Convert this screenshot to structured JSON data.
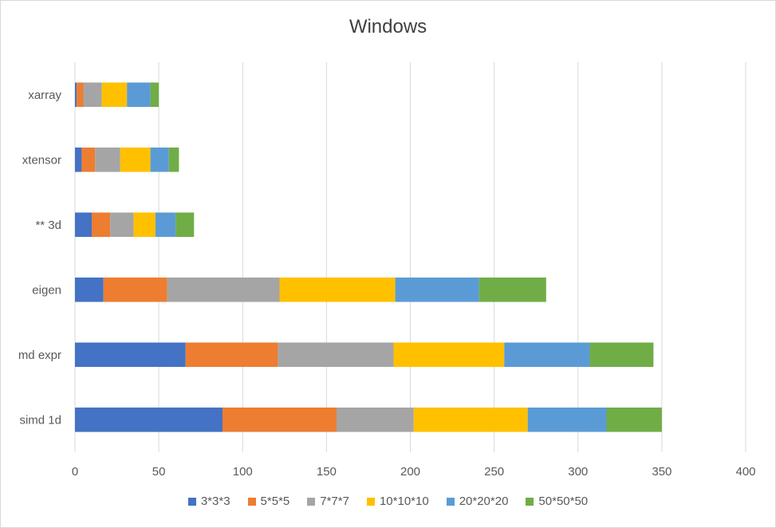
{
  "chart_data": {
    "type": "bar",
    "orientation": "horizontal",
    "stacked": true,
    "title": "Windows",
    "categories": [
      "xarray",
      "xtensor",
      "** 3d",
      "eigen",
      "md expr",
      "simd 1d"
    ],
    "x_ticks": [
      "0",
      "50",
      "100",
      "150",
      "200",
      "250",
      "300",
      "350",
      "400"
    ],
    "xlim": [
      0,
      400
    ],
    "grid": true,
    "legend_position": "bottom",
    "series": [
      {
        "name": "3*3*3",
        "color": "#4472C4",
        "values": [
          1,
          4,
          10,
          17,
          66,
          88
        ]
      },
      {
        "name": "5*5*5",
        "color": "#ED7D31",
        "values": [
          4,
          8,
          11,
          38,
          55,
          68
        ]
      },
      {
        "name": "7*7*7",
        "color": "#A5A5A5",
        "values": [
          11,
          15,
          14,
          67,
          69,
          46
        ]
      },
      {
        "name": "10*10*10",
        "color": "#FFC000",
        "values": [
          15,
          18,
          13,
          69,
          66,
          68
        ]
      },
      {
        "name": "20*20*20",
        "color": "#5B9BD5",
        "values": [
          14,
          11,
          12,
          50,
          51,
          47
        ]
      },
      {
        "name": "50*50*50",
        "color": "#70AD47",
        "values": [
          5,
          6,
          11,
          40,
          38,
          33
        ]
      }
    ]
  }
}
